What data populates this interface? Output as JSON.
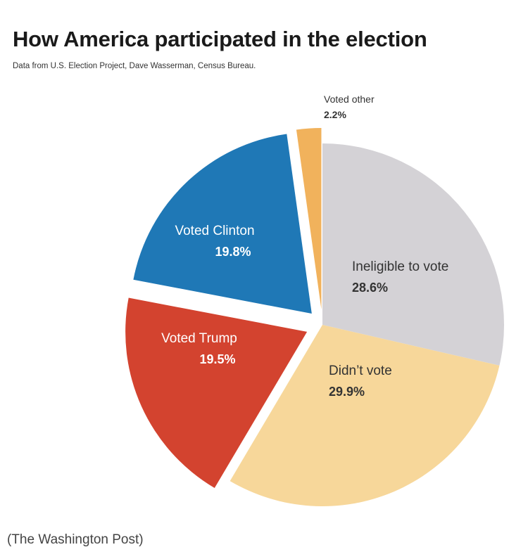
{
  "title": "How America participated in the election",
  "subtitle": "Data from U.S. Election Project, Dave Wasserman, Census Bureau.",
  "source": "(The Washington Post)",
  "chart_data": {
    "type": "pie",
    "title": "How America participated in the election",
    "legend": "none",
    "slices": [
      {
        "label": "Ineligible to vote",
        "value": 28.6,
        "value_label": "28.6%",
        "color": "#d4d2d6",
        "text_color": "#333333"
      },
      {
        "label": "Didn’t vote",
        "value": 29.9,
        "value_label": "29.9%",
        "color": "#f7d79a",
        "text_color": "#333333"
      },
      {
        "label": "Voted Trump",
        "value": 19.5,
        "value_label": "19.5%",
        "color": "#d3432f",
        "text_color": "#ffffff"
      },
      {
        "label": "Voted Clinton",
        "value": 19.8,
        "value_label": "19.8%",
        "color": "#1f78b6",
        "text_color": "#ffffff"
      },
      {
        "label": "Voted other",
        "value": 2.2,
        "value_label": "2.2%",
        "color": "#f1b25c",
        "text_color": "#333333"
      }
    ]
  }
}
